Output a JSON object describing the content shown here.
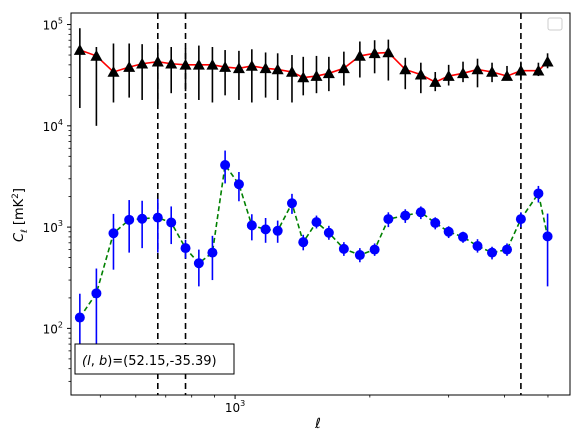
{
  "chart_data": {
    "type": "scatter",
    "xlabel_tex": "ℓ",
    "ylabel_tex": "C_ℓ [mK²]",
    "xscale": "log",
    "yscale": "log",
    "xlim": [
      430,
      5600
    ],
    "ylim": [
      22,
      130000
    ],
    "x_ticks": [
      {
        "value": 1000,
        "base": "10",
        "exp": "3"
      }
    ],
    "y_ticks": [
      {
        "value": 100,
        "base": "10",
        "exp": "2"
      },
      {
        "value": 1000,
        "base": "10",
        "exp": "3"
      },
      {
        "value": 10000,
        "base": "10",
        "exp": "4"
      },
      {
        "value": 100000,
        "base": "10",
        "exp": "5"
      }
    ],
    "legend": "top-right, empty",
    "vlines": [
      672,
      775,
      4350
    ],
    "annotation": "(l, b)=(52.15,-35.39)",
    "series": [
      {
        "marker": "triangle",
        "marker_color": "#000000",
        "line_color": "#ff0000",
        "line_style": "solid",
        "x": [
          450,
          490,
          535,
          580,
          620,
          672,
          720,
          775,
          830,
          890,
          950,
          1020,
          1090,
          1170,
          1245,
          1340,
          1420,
          1520,
          1620,
          1750,
          1900,
          2050,
          2200,
          2400,
          2600,
          2800,
          3000,
          3230,
          3480,
          3750,
          4050,
          4350,
          4760,
          4990
        ],
        "y": [
          56000,
          49000,
          34000,
          38000,
          41000,
          43000,
          41000,
          40000,
          40000,
          40000,
          38000,
          37000,
          39000,
          37000,
          36000,
          34000,
          30000,
          31000,
          33000,
          37000,
          49000,
          52000,
          53000,
          36000,
          32000,
          27000,
          31000,
          33000,
          36000,
          34000,
          31000,
          35000,
          35000,
          43000
        ],
        "lo": [
          15000,
          10000,
          17000,
          19000,
          18000,
          16000,
          21000,
          22000,
          18000,
          17000,
          20000,
          18000,
          17000,
          19000,
          18000,
          17000,
          20000,
          21000,
          22000,
          25000,
          30000,
          33000,
          28000,
          23000,
          21000,
          22000,
          25000,
          27000,
          24000,
          27000,
          28000,
          28000,
          31000,
          37000
        ],
        "hi": [
          92000,
          60000,
          65000,
          65000,
          64000,
          63000,
          60000,
          58000,
          62000,
          60000,
          56000,
          55000,
          57000,
          53000,
          52000,
          50000,
          48000,
          49000,
          48000,
          54000,
          68000,
          70000,
          71000,
          47000,
          42000,
          34000,
          40000,
          43000,
          46000,
          42000,
          39000,
          43000,
          42000,
          52000
        ]
      },
      {
        "marker": "circle",
        "marker_color": "#0000ff",
        "line_color": "#008000",
        "line_style": "dashed",
        "x": [
          450,
          490,
          535,
          580,
          620,
          672,
          720,
          775,
          830,
          890,
          950,
          1020,
          1090,
          1170,
          1245,
          1340,
          1420,
          1520,
          1620,
          1750,
          1900,
          2050,
          2200,
          2400,
          2600,
          2800,
          3000,
          3230,
          3480,
          3750,
          4050,
          4350,
          4760,
          4990
        ],
        "y": [
          128,
          222,
          870,
          1180,
          1210,
          1240,
          1110,
          620,
          440,
          560,
          4100,
          2650,
          1040,
          950,
          920,
          1720,
          710,
          1120,
          880,
          610,
          530,
          600,
          1200,
          1300,
          1400,
          1100,
          900,
          800,
          650,
          560,
          600,
          1200,
          2150,
          810
        ],
        "lo": [
          45,
          65,
          380,
          560,
          620,
          560,
          680,
          490,
          260,
          300,
          2700,
          1800,
          740,
          700,
          700,
          1350,
          590,
          970,
          750,
          520,
          450,
          520,
          1000,
          1100,
          1200,
          950,
          780,
          700,
          560,
          480,
          520,
          1000,
          1750,
          260
        ],
        "hi": [
          220,
          390,
          1350,
          1850,
          1820,
          1900,
          1600,
          750,
          600,
          820,
          5700,
          3500,
          1340,
          1230,
          1160,
          2130,
          840,
          1300,
          1030,
          710,
          620,
          690,
          1400,
          1500,
          1600,
          1250,
          1020,
          900,
          760,
          640,
          690,
          1400,
          2550,
          1360
        ]
      }
    ]
  }
}
